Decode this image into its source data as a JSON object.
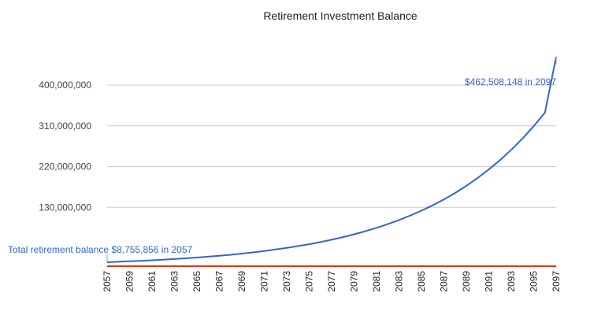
{
  "chart_data": {
    "type": "line",
    "title": "Retirement Investment Balance",
    "xlabel": "",
    "ylabel": "",
    "grid": true,
    "x": [
      2057,
      2058,
      2059,
      2060,
      2061,
      2062,
      2063,
      2064,
      2065,
      2066,
      2067,
      2068,
      2069,
      2070,
      2071,
      2072,
      2073,
      2074,
      2075,
      2076,
      2077,
      2078,
      2079,
      2080,
      2081,
      2082,
      2083,
      2084,
      2085,
      2086,
      2087,
      2088,
      2089,
      2090,
      2091,
      2092,
      2093,
      2094,
      2095,
      2096,
      2097
    ],
    "x_tick_labels": [
      "2057",
      "2059",
      "2061",
      "2063",
      "2065",
      "2067",
      "2069",
      "2071",
      "2073",
      "2075",
      "2077",
      "2079",
      "2081",
      "2083",
      "2085",
      "2087",
      "2089",
      "2091",
      "2093",
      "2095",
      "2097"
    ],
    "y_tick_labels": [
      "130,000,000",
      "220,000,000",
      "310,000,000",
      "400,000,000"
    ],
    "y_tick_values": [
      130000000,
      220000000,
      310000000,
      400000000
    ],
    "ylim": [
      0,
      480000000
    ],
    "series": [
      {
        "color": "#3366cc",
        "values": [
          8755856,
          9700000,
          10700000,
          11800000,
          13000000,
          14300000,
          15800000,
          17400000,
          19100000,
          21000000,
          23000000,
          25300000,
          27800000,
          30500000,
          33500000,
          36800000,
          40400000,
          44300000,
          48600000,
          53300000,
          58500000,
          64200000,
          70400000,
          77200000,
          84700000,
          92900000,
          101900000,
          111800000,
          122600000,
          134500000,
          147500000,
          161800000,
          177500000,
          194700000,
          213600000,
          234300000,
          257000000,
          281900000,
          309300000,
          339300000,
          462508148
        ]
      },
      {
        "color": "#dc3912",
        "values": [
          0,
          0,
          0,
          0,
          0,
          0,
          0,
          0,
          0,
          0,
          0,
          0,
          0,
          0,
          0,
          0,
          0,
          0,
          0,
          0,
          0,
          0,
          0,
          0,
          0,
          0,
          0,
          0,
          0,
          0,
          0,
          0,
          0,
          0,
          0,
          0,
          0,
          0,
          0,
          0,
          0
        ]
      }
    ],
    "annotations": {
      "start": "Total retirement balance $8,755,856 in 2057",
      "end": "$462,508,148 in 2097"
    }
  }
}
